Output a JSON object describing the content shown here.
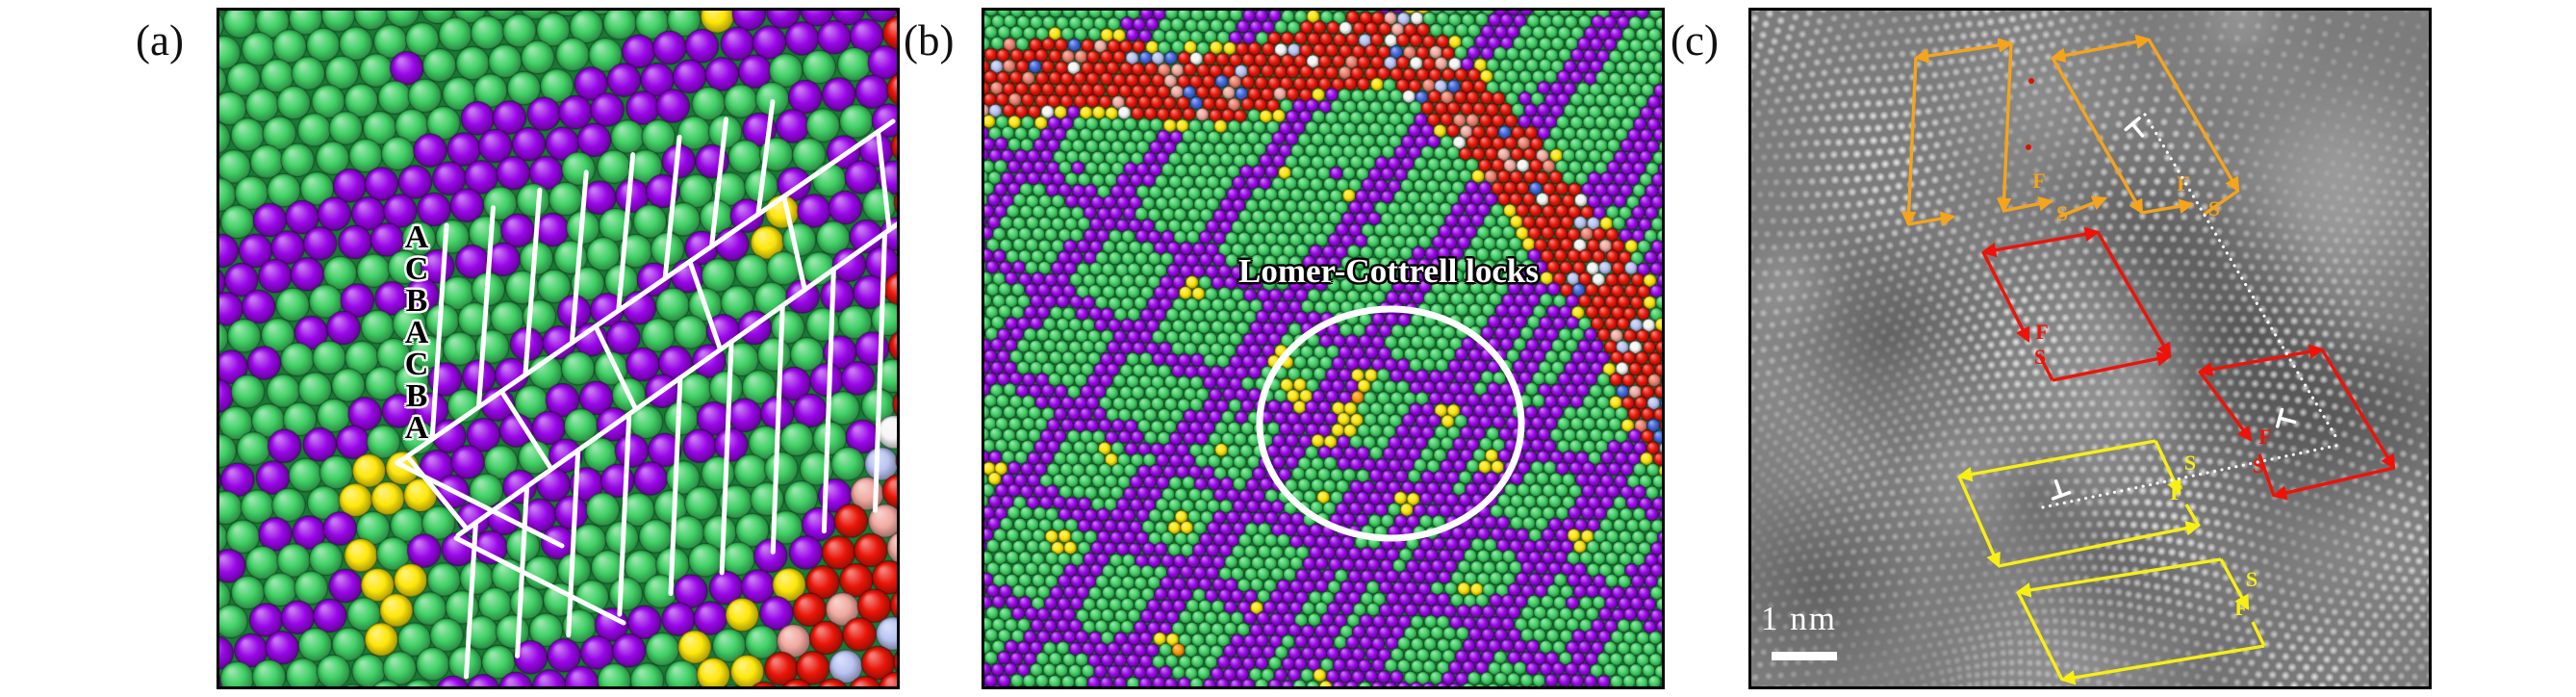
{
  "panels": [
    {
      "id": "a",
      "label": "(a)",
      "stacking_sequence": "ACBACBA",
      "annotation_line_color": "#ffffff",
      "atom_palette": {
        "matrix_green": "#41d166",
        "stacking_fault_purple": "#9a07e9",
        "partial_yellow": "#ffe70a",
        "boundary_red": "#ea1608",
        "orange": "#ff9a0a",
        "white": "#f6f6f6",
        "pink": "#f1a9a0",
        "salmon": "#ef7f6e",
        "lavender": "#b9c4f3",
        "blue": "#4166dc"
      }
    },
    {
      "id": "b",
      "label": "(b)",
      "annotation_label": "Lomer-Cottrell locks",
      "circle_color": "#ffffff"
    },
    {
      "id": "c",
      "label": "(c)",
      "scale_bar_label": "1 nm",
      "dislocation_symbol": "⊥",
      "dotted_line_color": "#ffffff",
      "red_dot_color": "#dd1100",
      "circuits": [
        {
          "name": "burgers-circuit-orange-1",
          "color": "#f5a41c",
          "finish_label": "F",
          "start_label": "S"
        },
        {
          "name": "burgers-circuit-orange-2",
          "color": "#f5a41c",
          "finish_label": "F",
          "start_label": "S"
        },
        {
          "name": "burgers-circuit-red-1",
          "color": "#ee1208",
          "finish_label": "F",
          "start_label": "S"
        },
        {
          "name": "burgers-circuit-red-2",
          "color": "#ee1208",
          "finish_label": "F",
          "start_label": "S"
        },
        {
          "name": "burgers-circuit-yellow-1",
          "color": "#f8f013",
          "finish_label": "F",
          "start_label": "S"
        },
        {
          "name": "burgers-circuit-yellow-2",
          "color": "#f8f013",
          "finish_label": "F",
          "start_label": "S"
        }
      ]
    }
  ]
}
